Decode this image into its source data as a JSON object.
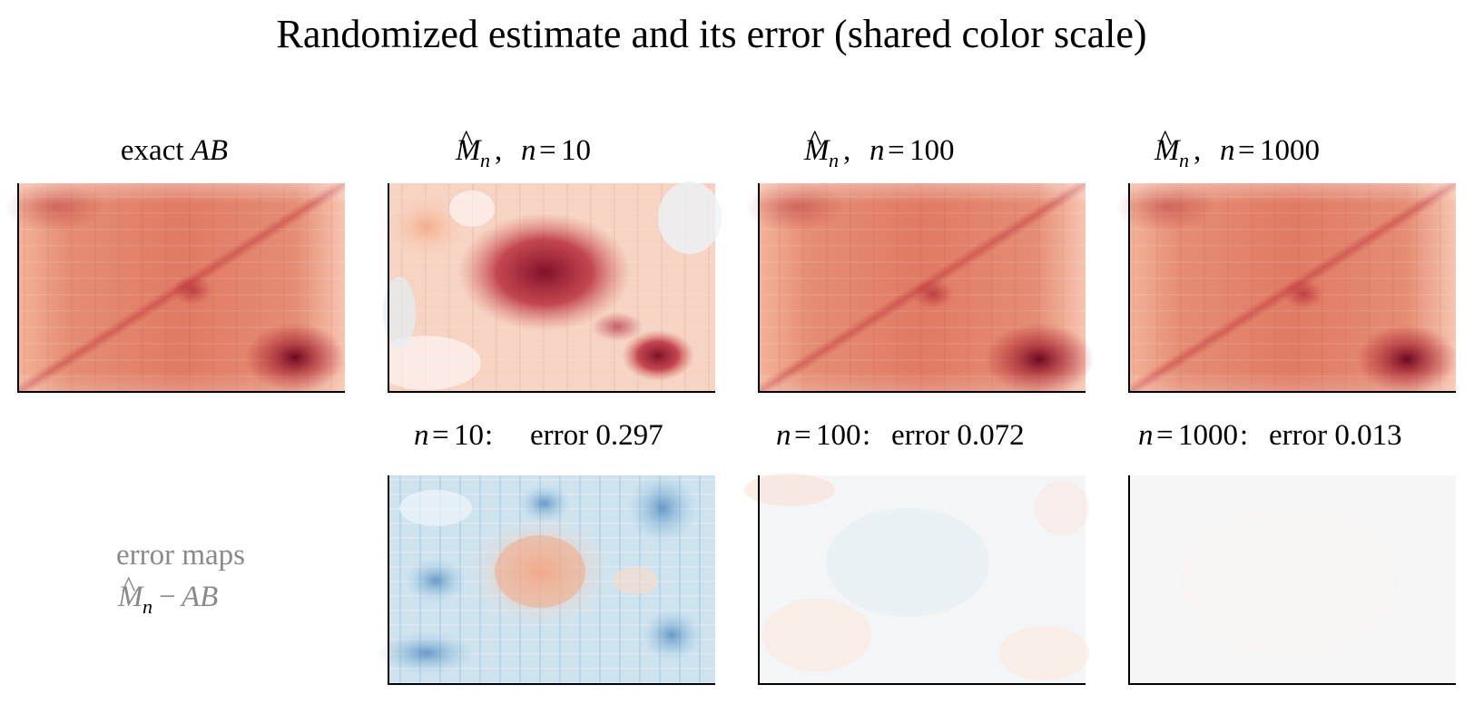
{
  "figure": {
    "title": "Randomized estimate and its error (shared color scale)"
  },
  "colormap": {
    "name": "RdBu_r",
    "stops": [
      "#053061",
      "#2166ac",
      "#4393c3",
      "#92c5de",
      "#d1e5f0",
      "#f7f7f7",
      "#fddbc7",
      "#f4a582",
      "#d6604d",
      "#b2182b",
      "#67001f"
    ],
    "shared_scale": true
  },
  "panels": {
    "exact": {
      "prefix": "exact ",
      "label": "AB"
    },
    "est10": {
      "symbol": "M",
      "sub": "n",
      "param": "n",
      "value": "10"
    },
    "est100": {
      "symbol": "M",
      "sub": "n",
      "param": "n",
      "value": "100"
    },
    "est1000": {
      "symbol": "M",
      "sub": "n",
      "param": "n",
      "value": "1000"
    },
    "err10": {
      "param": "n",
      "value": "10",
      "error_label": "error 0.297"
    },
    "err100": {
      "param": "n",
      "value": "100",
      "error_label": "error 0.072"
    },
    "err1000": {
      "param": "n",
      "value": "1000",
      "error_label": "error 0.013"
    }
  },
  "row_label": {
    "line1": "error maps",
    "symbol": "M",
    "sub": "n",
    "minus": "−",
    "rhs": "AB"
  },
  "chart_data": {
    "type": "heatmap",
    "title": "Randomized estimate and its error (shared color scale)",
    "grid": false,
    "panels": [
      {
        "name": "exact AB",
        "relative_error": null
      },
      {
        "name": "M̂_n, n=10",
        "n": 10
      },
      {
        "name": "M̂_n, n=100",
        "n": 100
      },
      {
        "name": "M̂_n, n=1000",
        "n": 1000
      },
      {
        "name": "n=10: error 0.297",
        "n": 10,
        "relative_error": 0.297
      },
      {
        "name": "n=100: error 0.072",
        "n": 100,
        "relative_error": 0.072
      },
      {
        "name": "n=1000: error 0.013",
        "n": 1000,
        "relative_error": 0.013
      }
    ]
  }
}
